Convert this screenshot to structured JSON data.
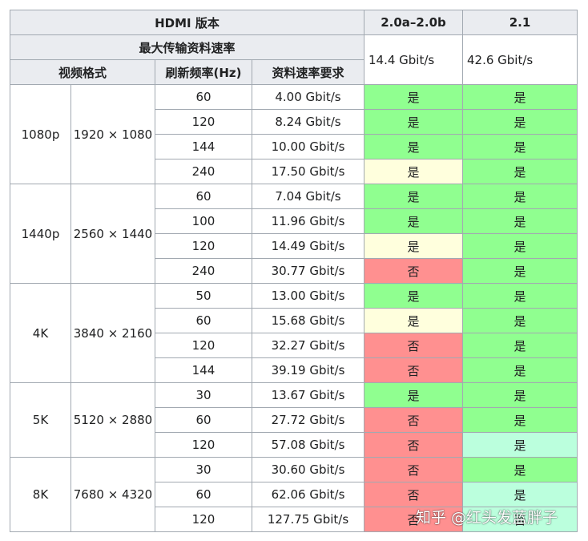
{
  "header": {
    "version_label": "HDMI 版本",
    "versions": [
      "2.0a–2.0b",
      "2.1"
    ],
    "max_rate_label": "最大传输资料速率",
    "max_rates": [
      "14.4 Gbit/s",
      "42.6 Gbit/s"
    ],
    "format_label": "视频格式",
    "refresh_label": "刷新频率(Hz)",
    "rate_req_label": "资料速率要求"
  },
  "legend_colors": {
    "yes": "#90ff90",
    "partial": "#ffffdd",
    "no": "#ff9090",
    "optional": "#bbffdd"
  },
  "groups": [
    {
      "format": "1080p",
      "resolution": "1920 × 1080",
      "rows": [
        {
          "hz": "60",
          "rate": "4.00 Gbit/s",
          "v20": {
            "text": "是",
            "status": "yes"
          },
          "v21": {
            "text": "是",
            "status": "yes"
          }
        },
        {
          "hz": "120",
          "rate": "8.24 Gbit/s",
          "v20": {
            "text": "是",
            "status": "yes"
          },
          "v21": {
            "text": "是",
            "status": "yes"
          }
        },
        {
          "hz": "144",
          "rate": "10.00 Gbit/s",
          "v20": {
            "text": "是",
            "status": "yes"
          },
          "v21": {
            "text": "是",
            "status": "yes"
          }
        },
        {
          "hz": "240",
          "rate": "17.50 Gbit/s",
          "v20": {
            "text": "是",
            "status": "partial"
          },
          "v21": {
            "text": "是",
            "status": "yes"
          }
        }
      ]
    },
    {
      "format": "1440p",
      "resolution": "2560 × 1440",
      "rows": [
        {
          "hz": "60",
          "rate": "7.04 Gbit/s",
          "v20": {
            "text": "是",
            "status": "yes"
          },
          "v21": {
            "text": "是",
            "status": "yes"
          }
        },
        {
          "hz": "100",
          "rate": "11.96 Gbit/s",
          "v20": {
            "text": "是",
            "status": "yes"
          },
          "v21": {
            "text": "是",
            "status": "yes"
          }
        },
        {
          "hz": "120",
          "rate": "14.49 Gbit/s",
          "v20": {
            "text": "是",
            "status": "partial"
          },
          "v21": {
            "text": "是",
            "status": "yes"
          }
        },
        {
          "hz": "240",
          "rate": "30.77 Gbit/s",
          "v20": {
            "text": "否",
            "status": "no"
          },
          "v21": {
            "text": "是",
            "status": "yes"
          }
        }
      ]
    },
    {
      "format": "4K",
      "resolution": "3840 × 2160",
      "rows": [
        {
          "hz": "50",
          "rate": "13.00 Gbit/s",
          "v20": {
            "text": "是",
            "status": "yes"
          },
          "v21": {
            "text": "是",
            "status": "yes"
          }
        },
        {
          "hz": "60",
          "rate": "15.68 Gbit/s",
          "v20": {
            "text": "是",
            "status": "partial"
          },
          "v21": {
            "text": "是",
            "status": "yes"
          }
        },
        {
          "hz": "120",
          "rate": "32.27 Gbit/s",
          "v20": {
            "text": "否",
            "status": "no"
          },
          "v21": {
            "text": "是",
            "status": "yes"
          }
        },
        {
          "hz": "144",
          "rate": "39.19 Gbit/s",
          "v20": {
            "text": "否",
            "status": "no"
          },
          "v21": {
            "text": "是",
            "status": "yes"
          }
        }
      ]
    },
    {
      "format": "5K",
      "resolution": "5120 × 2880",
      "rows": [
        {
          "hz": "30",
          "rate": "13.67 Gbit/s",
          "v20": {
            "text": "是",
            "status": "yes"
          },
          "v21": {
            "text": "是",
            "status": "yes"
          }
        },
        {
          "hz": "60",
          "rate": "27.72 Gbit/s",
          "v20": {
            "text": "否",
            "status": "no"
          },
          "v21": {
            "text": "是",
            "status": "yes"
          }
        },
        {
          "hz": "120",
          "rate": "57.08 Gbit/s",
          "v20": {
            "text": "否",
            "status": "no"
          },
          "v21": {
            "text": "是",
            "status": "optional"
          }
        }
      ]
    },
    {
      "format": "8K",
      "resolution": "7680 × 4320",
      "rows": [
        {
          "hz": "30",
          "rate": "30.60 Gbit/s",
          "v20": {
            "text": "否",
            "status": "no"
          },
          "v21": {
            "text": "是",
            "status": "yes"
          }
        },
        {
          "hz": "60",
          "rate": "62.06 Gbit/s",
          "v20": {
            "text": "否",
            "status": "no"
          },
          "v21": {
            "text": "是",
            "status": "optional"
          }
        },
        {
          "hz": "120",
          "rate": "127.75 Gbit/s",
          "v20": {
            "text": "否",
            "status": "no"
          },
          "v21": {
            "text": "否",
            "status": "optional"
          }
        }
      ]
    }
  ],
  "watermark": "知乎 @红头发蓝胖子"
}
